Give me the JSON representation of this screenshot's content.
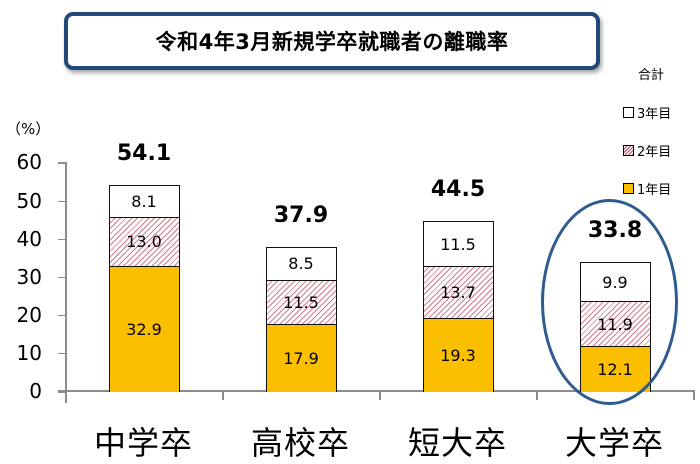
{
  "title": "令和4年3月新規学卒就職者の離職率",
  "legend": {
    "title": "合計",
    "items": [
      {
        "label": "3年目",
        "style": "white"
      },
      {
        "label": "2年目",
        "style": "hatch"
      },
      {
        "label": "1年目",
        "style": "yellow"
      }
    ]
  },
  "axis": {
    "unit": "（%）",
    "yticks": [
      "60",
      "50",
      "40",
      "30",
      "20",
      "10",
      "0"
    ]
  },
  "colors": {
    "year1": "#fcbf00",
    "year2_hatch": "#d67a8c",
    "year3": "#ffffff",
    "title_border": "#23487a",
    "highlight": "#2f5b8f"
  },
  "chart_data": {
    "type": "bar",
    "stacked": true,
    "title": "令和4年3月新規学卒就職者の離職率",
    "xlabel": "",
    "ylabel": "（%）",
    "ylim": [
      0,
      60
    ],
    "yticks": [
      0,
      10,
      20,
      30,
      40,
      50,
      60
    ],
    "grid": false,
    "legend_position": "right-top",
    "legend_title": "合計",
    "categories": [
      "中学卒",
      "高校卒",
      "短大卒",
      "大学卒"
    ],
    "series": [
      {
        "name": "1年目",
        "values": [
          32.9,
          17.9,
          19.3,
          12.1
        ]
      },
      {
        "name": "2年目",
        "values": [
          13.0,
          11.5,
          13.7,
          11.9
        ]
      },
      {
        "name": "3年目",
        "values": [
          8.1,
          8.5,
          11.5,
          9.9
        ]
      }
    ],
    "totals": [
      54.1,
      37.9,
      44.5,
      33.8
    ],
    "annotations": [
      {
        "type": "ellipse-highlight",
        "category": "大学卒"
      }
    ]
  }
}
